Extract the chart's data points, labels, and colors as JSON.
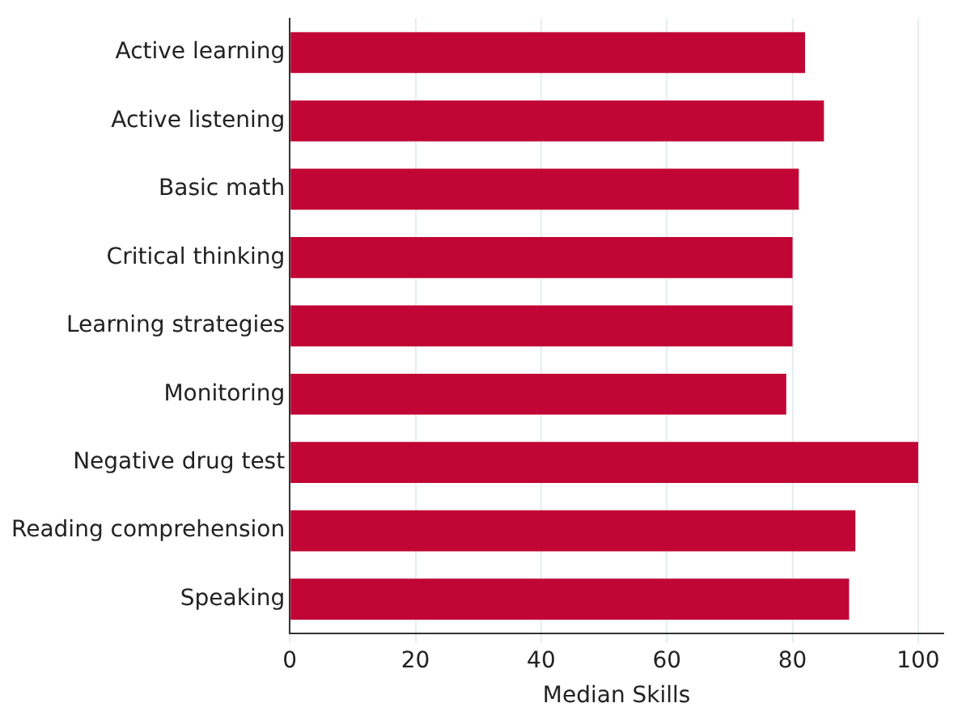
{
  "chart_data": {
    "type": "bar",
    "orientation": "horizontal",
    "xlabel": "Median Skills",
    "categories": [
      "Active learning",
      "Active listening",
      "Basic math",
      "Critical thinking",
      "Learning strategies",
      "Monitoring",
      "Negative drug test",
      "Reading comprehension",
      "Speaking"
    ],
    "values": [
      82,
      85,
      81,
      80,
      80,
      79,
      100,
      90,
      89
    ],
    "color": "#c10534",
    "xlim": [
      0,
      104
    ],
    "xticks": [
      0,
      20,
      40,
      60,
      80,
      100
    ],
    "grid": "x"
  }
}
